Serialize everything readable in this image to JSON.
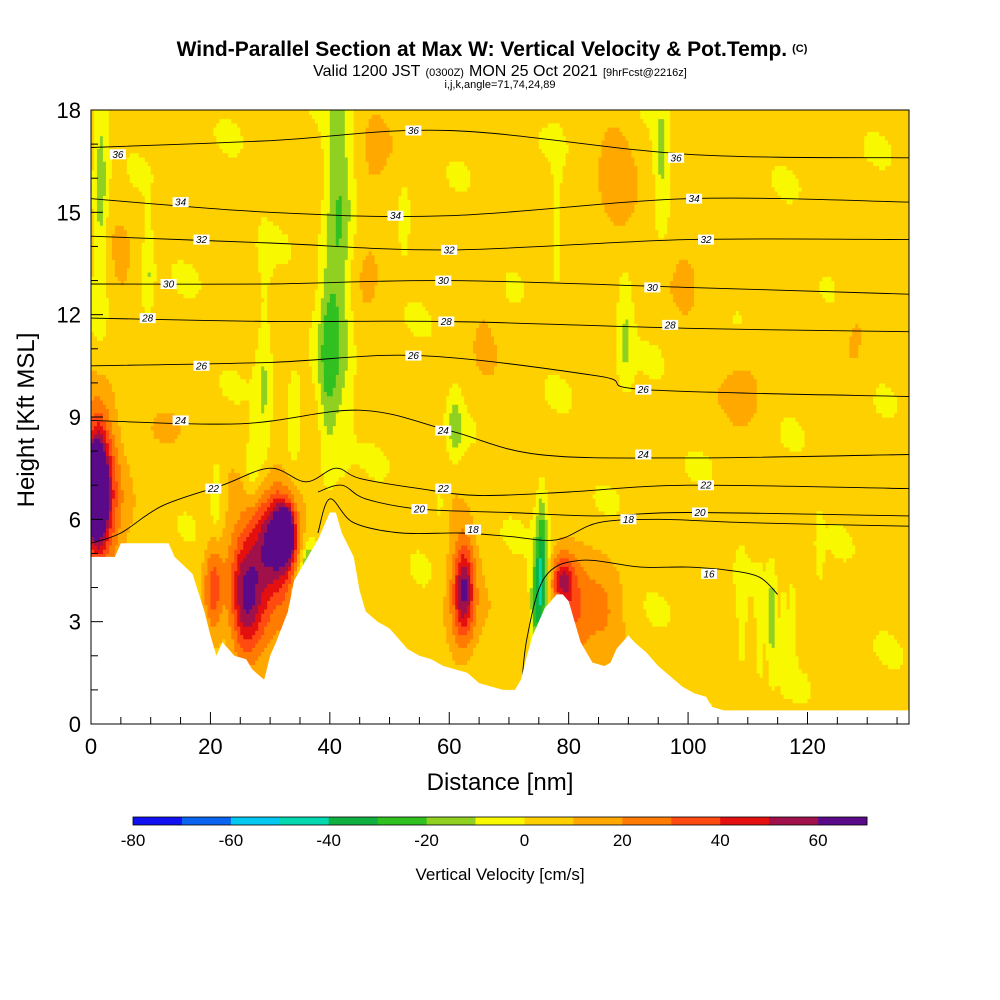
{
  "chart_data": {
    "type": "heatmap",
    "title": {
      "main": "Wind-Parallel Section at Max W: Vertical Velocity & Pot.Temp.",
      "main_suffix": "(C)",
      "valid_prefix": "Valid 1200 JST",
      "valid_z": "(0300Z)",
      "valid_date": "MON 25 Oct 2021",
      "forecast": "[9hrFcst@2216z]",
      "indices": "i,j,k,angle=71,74,24,89"
    },
    "xlabel": "Distance [nm]",
    "ylabel": "Height [Kft MSL]",
    "xlim": [
      0,
      137
    ],
    "ylim": [
      0,
      18
    ],
    "x_ticks": [
      0,
      20,
      40,
      60,
      80,
      100,
      120
    ],
    "x_tick_labels": [
      "0",
      "20",
      "40",
      "60",
      "80",
      "100",
      "120"
    ],
    "y_ticks": [
      0,
      3,
      6,
      9,
      12,
      15,
      18
    ],
    "y_tick_labels": [
      "0",
      "3",
      "6",
      "9",
      "12",
      "15",
      "18"
    ],
    "colorbar": {
      "label": "Vertical Velocity [cm/s]",
      "bounds": [
        -80,
        70
      ],
      "step": 10,
      "tick_labels": [
        "-80",
        "-60",
        "-40",
        "-20",
        "0",
        "20",
        "40",
        "60"
      ],
      "tick_values": [
        -80,
        -60,
        -40,
        -20,
        0,
        20,
        40,
        60
      ],
      "colors": [
        "#1010f0",
        "#0a64f0",
        "#00c8f0",
        "#00d8b0",
        "#10b040",
        "#30c020",
        "#90d020",
        "#f8f800",
        "#ffd000",
        "#ffa800",
        "#ff7c00",
        "#ff4a10",
        "#e41010",
        "#a0104a",
        "#5a0a88"
      ]
    },
    "terrain": [
      [
        0,
        4.9
      ],
      [
        4,
        4.9
      ],
      [
        5,
        5.3
      ],
      [
        13,
        5.3
      ],
      [
        14,
        4.9
      ],
      [
        17,
        4.4
      ],
      [
        19,
        3.3
      ],
      [
        20,
        2.6
      ],
      [
        21,
        2.0
      ],
      [
        22,
        2.4
      ],
      [
        24,
        2.0
      ],
      [
        26,
        1.9
      ],
      [
        27,
        1.6
      ],
      [
        29,
        1.3
      ],
      [
        30,
        2.0
      ],
      [
        31,
        2.4
      ],
      [
        33,
        3.3
      ],
      [
        34,
        4.2
      ],
      [
        36,
        4.8
      ],
      [
        38,
        5.4
      ],
      [
        40,
        6.2
      ],
      [
        41,
        6.2
      ],
      [
        42,
        5.6
      ],
      [
        44,
        4.9
      ],
      [
        45,
        3.9
      ],
      [
        46,
        3.3
      ],
      [
        48,
        3.0
      ],
      [
        50,
        2.8
      ],
      [
        51,
        2.6
      ],
      [
        53,
        2.2
      ],
      [
        55,
        2.0
      ],
      [
        57,
        1.9
      ],
      [
        59,
        1.7
      ],
      [
        61,
        1.6
      ],
      [
        63,
        1.5
      ],
      [
        65,
        1.2
      ],
      [
        67,
        1.1
      ],
      [
        69,
        1.0
      ],
      [
        71,
        1.0
      ],
      [
        72,
        1.3
      ],
      [
        73,
        2.0
      ],
      [
        74,
        2.6
      ],
      [
        75,
        3.0
      ],
      [
        76,
        3.4
      ],
      [
        77,
        3.6
      ],
      [
        78,
        3.8
      ],
      [
        79,
        3.8
      ],
      [
        80,
        3.6
      ],
      [
        81,
        3.0
      ],
      [
        82,
        2.4
      ],
      [
        84,
        1.8
      ],
      [
        86,
        1.7
      ],
      [
        87,
        1.8
      ],
      [
        88,
        2.2
      ],
      [
        90,
        2.6
      ],
      [
        91,
        2.4
      ],
      [
        93,
        2.1
      ],
      [
        95,
        1.7
      ],
      [
        97,
        1.4
      ],
      [
        99,
        1.1
      ],
      [
        101,
        0.9
      ],
      [
        103,
        0.8
      ],
      [
        104,
        0.5
      ],
      [
        106,
        0.4
      ],
      [
        118,
        0.4
      ],
      [
        137,
        0.4
      ]
    ],
    "blobs": [
      {
        "x": 1.0,
        "y": 7.0,
        "rx": 2.0,
        "ry": 1.8,
        "w": 60
      },
      {
        "x": 0.8,
        "y": 6.8,
        "rx": 1.4,
        "ry": 1.0,
        "w": 70
      },
      {
        "x": 2.0,
        "y": 6.3,
        "rx": 3.2,
        "ry": 2.8,
        "w": 30
      },
      {
        "x": 31,
        "y": 5.6,
        "rx": 3.2,
        "ry": 1.3,
        "w": 45
      },
      {
        "x": 32.5,
        "y": 5.6,
        "rx": 1.4,
        "ry": 0.7,
        "w": 70
      },
      {
        "x": 30,
        "y": 4.6,
        "rx": 6.5,
        "ry": 2.5,
        "w": 25
      },
      {
        "x": 20.5,
        "y": 4.0,
        "rx": 1.6,
        "ry": 1.4,
        "w": 30
      },
      {
        "x": 25.5,
        "y": 3.6,
        "rx": 2.4,
        "ry": 1.8,
        "w": 30
      },
      {
        "x": 27,
        "y": 3.4,
        "rx": 2.8,
        "ry": 1.6,
        "w": 20
      },
      {
        "x": 62.5,
        "y": 4.0,
        "rx": 1.6,
        "ry": 1.3,
        "w": 40
      },
      {
        "x": 62,
        "y": 3.6,
        "rx": 2.8,
        "ry": 2.0,
        "w": 20
      },
      {
        "x": 79,
        "y": 4.2,
        "rx": 1.8,
        "ry": 0.8,
        "w": 40
      },
      {
        "x": 81,
        "y": 3.0,
        "rx": 2.8,
        "ry": 1.6,
        "w": 25
      },
      {
        "x": 86,
        "y": 3.2,
        "rx": 3.5,
        "ry": 1.6,
        "w": 15
      },
      {
        "x": 36.5,
        "y": 4.4,
        "rx": 1.6,
        "ry": 1.0,
        "w": -40
      },
      {
        "x": 35.5,
        "y": 3.5,
        "rx": 1.4,
        "ry": 0.8,
        "w": -30
      },
      {
        "x": 75.5,
        "y": 4.5,
        "rx": 1.0,
        "ry": 2.2,
        "w": -40
      },
      {
        "x": 74.5,
        "y": 3.6,
        "rx": 0.9,
        "ry": 1.4,
        "w": -25
      },
      {
        "x": 41.5,
        "y": 14,
        "rx": 2.2,
        "ry": 5.0,
        "w": -25
      },
      {
        "x": 39.5,
        "y": 10.5,
        "rx": 1.6,
        "ry": 3.0,
        "w": -20
      },
      {
        "x": 29,
        "y": 10,
        "rx": 1.4,
        "ry": 3.0,
        "w": -15
      },
      {
        "x": 34,
        "y": 8.8,
        "rx": 1.6,
        "ry": 1.4,
        "w": -15
      },
      {
        "x": 27,
        "y": 7.5,
        "rx": 1.2,
        "ry": 1.0,
        "w": -15
      },
      {
        "x": 21,
        "y": 6.8,
        "rx": 1.0,
        "ry": 1.3,
        "w": -15
      },
      {
        "x": 1.6,
        "y": 15.5,
        "rx": 1.2,
        "ry": 3.0,
        "w": -20
      },
      {
        "x": 9.5,
        "y": 13.2,
        "rx": 1.0,
        "ry": 1.4,
        "w": -15
      },
      {
        "x": 61,
        "y": 8.7,
        "rx": 1.1,
        "ry": 0.9,
        "w": -20
      },
      {
        "x": 89.5,
        "y": 11.3,
        "rx": 1.3,
        "ry": 1.6,
        "w": -15
      },
      {
        "x": 95.5,
        "y": 16.5,
        "rx": 1.2,
        "ry": 2.2,
        "w": -15
      },
      {
        "x": 52.5,
        "y": 14.8,
        "rx": 0.8,
        "ry": 1.0,
        "w": -15
      },
      {
        "x": 78,
        "y": 14.5,
        "rx": 0.8,
        "ry": 2.0,
        "w": -10
      },
      {
        "x": 58.5,
        "y": 6.5,
        "rx": 1.2,
        "ry": 1.0,
        "w": -10
      },
      {
        "x": 109,
        "y": 3.0,
        "rx": 0.7,
        "ry": 1.5,
        "w": -15
      },
      {
        "x": 112,
        "y": 2.7,
        "rx": 0.6,
        "ry": 1.2,
        "w": -15
      },
      {
        "x": 114,
        "y": 3.1,
        "rx": 0.7,
        "ry": 1.4,
        "w": -20
      },
      {
        "x": 116,
        "y": 2.7,
        "rx": 0.6,
        "ry": 1.1,
        "w": -15
      },
      {
        "x": 117.5,
        "y": 3.0,
        "rx": 0.6,
        "ry": 1.2,
        "w": -15
      },
      {
        "x": 122,
        "y": 5.0,
        "rx": 0.6,
        "ry": 1.0,
        "w": -10
      },
      {
        "x": 12,
        "y": 8.7,
        "rx": 3.0,
        "ry": 0.6,
        "w": 15
      },
      {
        "x": 47,
        "y": 15,
        "rx": 2.8,
        "ry": 3.0,
        "w": 8
      },
      {
        "x": 88,
        "y": 16,
        "rx": 3.0,
        "ry": 2.2,
        "w": 10
      },
      {
        "x": 110,
        "y": 9.8,
        "rx": 3.5,
        "ry": 1.4,
        "w": 8
      },
      {
        "x": 128,
        "y": 11.5,
        "rx": 2.5,
        "ry": 2.0,
        "w": 8
      },
      {
        "x": 66,
        "y": 13,
        "rx": 2.5,
        "ry": 3.0,
        "w": 5
      },
      {
        "x": 100,
        "y": 14.5,
        "rx": 2.5,
        "ry": 3.0,
        "w": 6
      },
      {
        "x": 5,
        "y": 12.5,
        "rx": 2.0,
        "ry": 2.5,
        "w": 5
      }
    ],
    "isentropes": [
      {
        "theta": "36",
        "label_points": [
          [
            4.5,
            16.7
          ],
          [
            54,
            17.4
          ],
          [
            98,
            16.6
          ]
        ],
        "points": [
          [
            0,
            16.9
          ],
          [
            30,
            17.1
          ],
          [
            60,
            17.4
          ],
          [
            100,
            16.7
          ],
          [
            137,
            16.6
          ]
        ]
      },
      {
        "theta": "34",
        "label_points": [
          [
            15,
            15.3
          ],
          [
            51,
            14.9
          ],
          [
            101,
            15.4
          ]
        ],
        "points": [
          [
            0,
            15.4
          ],
          [
            30,
            15.0
          ],
          [
            60,
            14.9
          ],
          [
            100,
            15.4
          ],
          [
            137,
            15.3
          ]
        ]
      },
      {
        "theta": "32",
        "label_points": [
          [
            18.5,
            14.2
          ],
          [
            60,
            13.9
          ],
          [
            103,
            14.2
          ]
        ],
        "points": [
          [
            0,
            14.3
          ],
          [
            30,
            14.1
          ],
          [
            60,
            13.9
          ],
          [
            100,
            14.2
          ],
          [
            137,
            14.2
          ]
        ]
      },
      {
        "theta": "30",
        "label_points": [
          [
            13,
            12.9
          ],
          [
            59,
            13.0
          ],
          [
            94,
            12.8
          ]
        ],
        "points": [
          [
            0,
            12.9
          ],
          [
            30,
            12.9
          ],
          [
            60,
            13.0
          ],
          [
            100,
            12.8
          ],
          [
            137,
            12.6
          ]
        ]
      },
      {
        "theta": "28",
        "label_points": [
          [
            9.5,
            11.9
          ],
          [
            59.5,
            11.8
          ],
          [
            97,
            11.7
          ]
        ],
        "points": [
          [
            0,
            11.9
          ],
          [
            30,
            11.8
          ],
          [
            60,
            11.8
          ],
          [
            100,
            11.6
          ],
          [
            137,
            11.5
          ]
        ]
      },
      {
        "theta": "26",
        "label_points": [
          [
            18.5,
            10.5
          ],
          [
            54,
            10.8
          ],
          [
            92.5,
            9.8
          ]
        ],
        "points": [
          [
            0,
            10.5
          ],
          [
            30,
            10.6
          ],
          [
            55,
            10.8
          ],
          [
            85,
            10.2
          ],
          [
            93,
            9.8
          ],
          [
            137,
            9.6
          ]
        ]
      },
      {
        "theta": "24",
        "label_points": [
          [
            15,
            8.9
          ],
          [
            59,
            8.6
          ],
          [
            92.5,
            7.9
          ]
        ],
        "points": [
          [
            0,
            8.9
          ],
          [
            25,
            8.8
          ],
          [
            45,
            9.2
          ],
          [
            60,
            8.6
          ],
          [
            75,
            7.9
          ],
          [
            100,
            7.8
          ],
          [
            137,
            7.9
          ]
        ]
      },
      {
        "theta": "22",
        "label_points": [
          [
            20.5,
            6.9
          ],
          [
            59,
            6.9
          ],
          [
            103,
            7.0
          ]
        ],
        "points": [
          [
            0,
            5.3
          ],
          [
            5,
            5.6
          ],
          [
            12,
            6.4
          ],
          [
            22,
            7.0
          ],
          [
            30,
            7.5
          ],
          [
            36,
            7.1
          ],
          [
            41,
            7.5
          ],
          [
            45,
            7.2
          ],
          [
            55,
            6.9
          ],
          [
            65,
            6.7
          ],
          [
            80,
            6.8
          ],
          [
            100,
            7.0
          ],
          [
            137,
            6.9
          ]
        ]
      },
      {
        "theta": "20",
        "label_points": [
          [
            55,
            6.3
          ],
          [
            102,
            6.2
          ]
        ],
        "points": [
          [
            38,
            6.8
          ],
          [
            42,
            7.0
          ],
          [
            46,
            6.6
          ],
          [
            55,
            6.3
          ],
          [
            70,
            6.2
          ],
          [
            85,
            6.1
          ],
          [
            100,
            6.2
          ],
          [
            137,
            6.1
          ]
        ]
      },
      {
        "theta": "18",
        "label_points": [
          [
            64,
            5.7
          ],
          [
            90,
            6.0
          ]
        ],
        "points": [
          [
            38,
            5.6
          ],
          [
            40,
            6.6
          ],
          [
            44,
            5.9
          ],
          [
            52,
            5.6
          ],
          [
            62,
            5.6
          ],
          [
            70,
            5.5
          ],
          [
            78,
            5.4
          ],
          [
            85,
            5.9
          ],
          [
            95,
            6.0
          ],
          [
            110,
            5.9
          ],
          [
            137,
            5.8
          ]
        ]
      },
      {
        "theta": "16",
        "label_points": [
          [
            103.5,
            4.4
          ]
        ],
        "points": [
          [
            72,
            0.8
          ],
          [
            73,
            2.5
          ],
          [
            76,
            4.3
          ],
          [
            82,
            4.8
          ],
          [
            92,
            4.6
          ],
          [
            100,
            4.6
          ],
          [
            107,
            4.5
          ],
          [
            112,
            4.3
          ],
          [
            115,
            3.8
          ]
        ]
      }
    ]
  }
}
